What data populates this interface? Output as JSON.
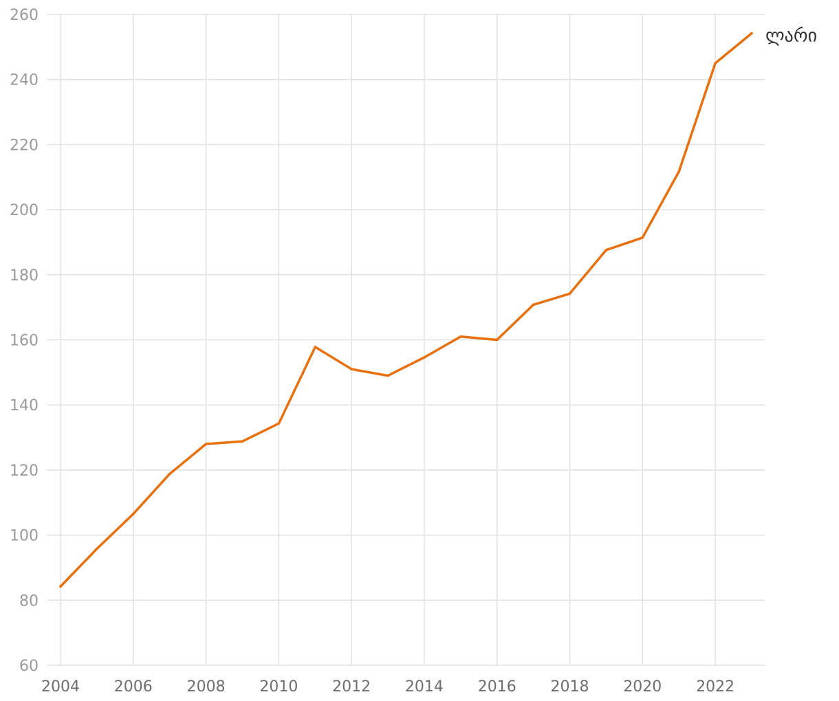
{
  "chart_data": {
    "type": "line",
    "title": "",
    "xlabel": "",
    "ylabel": "",
    "x": [
      2004,
      2005,
      2006,
      2007,
      2008,
      2009,
      2010,
      2011,
      2012,
      2013,
      2014,
      2015,
      2016,
      2017,
      2018,
      2019,
      2020,
      2021,
      2022,
      2023
    ],
    "x_ticks": [
      "2004",
      "2006",
      "2008",
      "2010",
      "2012",
      "2014",
      "2016",
      "2018",
      "2020",
      "2022"
    ],
    "y_ticks": [
      "60",
      "80",
      "100",
      "120",
      "140",
      "160",
      "180",
      "200",
      "220",
      "240",
      "260"
    ],
    "xlim": [
      2004,
      2023
    ],
    "ylim": [
      60,
      260
    ],
    "grid": true,
    "legend": "end-of-line label",
    "series": [
      {
        "name": "ლარი",
        "color": "#e8700f",
        "values": [
          84.2,
          95.8,
          106.5,
          118.8,
          128,
          128.8,
          134.3,
          157.8,
          151,
          149,
          154.6,
          161,
          160,
          170.8,
          174.2,
          187.6,
          191.4,
          211.7,
          245,
          254.2
        ]
      }
    ]
  }
}
